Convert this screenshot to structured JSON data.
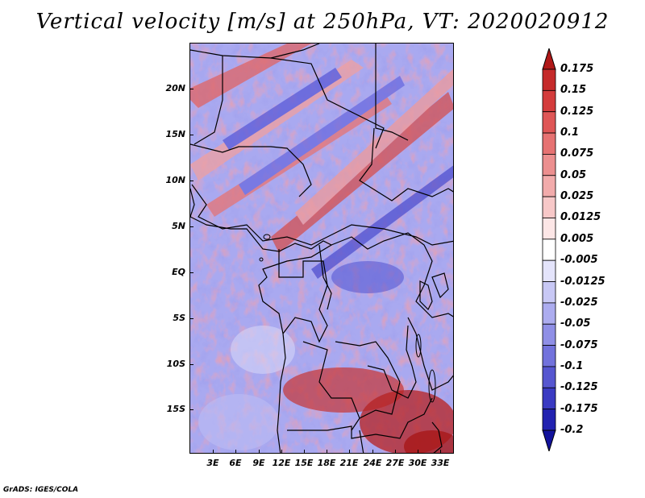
{
  "title": "Vertical velocity [m/s] at 250hPa, VT: 2020020912",
  "map": {
    "y_labels": [
      "20N",
      "15N",
      "10N",
      "5N",
      "EQ",
      "5S",
      "10S",
      "15S"
    ],
    "x_labels": [
      "3E",
      "6E",
      "9E",
      "12E",
      "15E",
      "18E",
      "21E",
      "24E",
      "27E",
      "30E",
      "33E"
    ],
    "lon_range": [
      0,
      35
    ],
    "lat_range": [
      -20,
      25
    ],
    "field": "vertical velocity",
    "units": "m/s",
    "level": "250hPa"
  },
  "colorbar": {
    "labels": [
      "0.175",
      "0.15",
      "0.125",
      "0.1",
      "0.075",
      "0.05",
      "0.025",
      "0.0125",
      "0.005",
      "-0.005",
      "-0.0125",
      "-0.025",
      "-0.05",
      "-0.075",
      "-0.1",
      "-0.125",
      "-0.175",
      "-0.2"
    ],
    "colors": [
      "#b01818",
      "#c52a2a",
      "#d43c3c",
      "#df5656",
      "#e67272",
      "#ec8f8f",
      "#f2abab",
      "#f7c8c8",
      "#fce6e6",
      "#ffffff",
      "#e4e4fb",
      "#c8c8f5",
      "#acacef",
      "#8f8fe6",
      "#7272dc",
      "#5656d0",
      "#3a3ac2",
      "#2222b0",
      "#12129c"
    ]
  },
  "footer": "GrADS: IGES/COLA"
}
